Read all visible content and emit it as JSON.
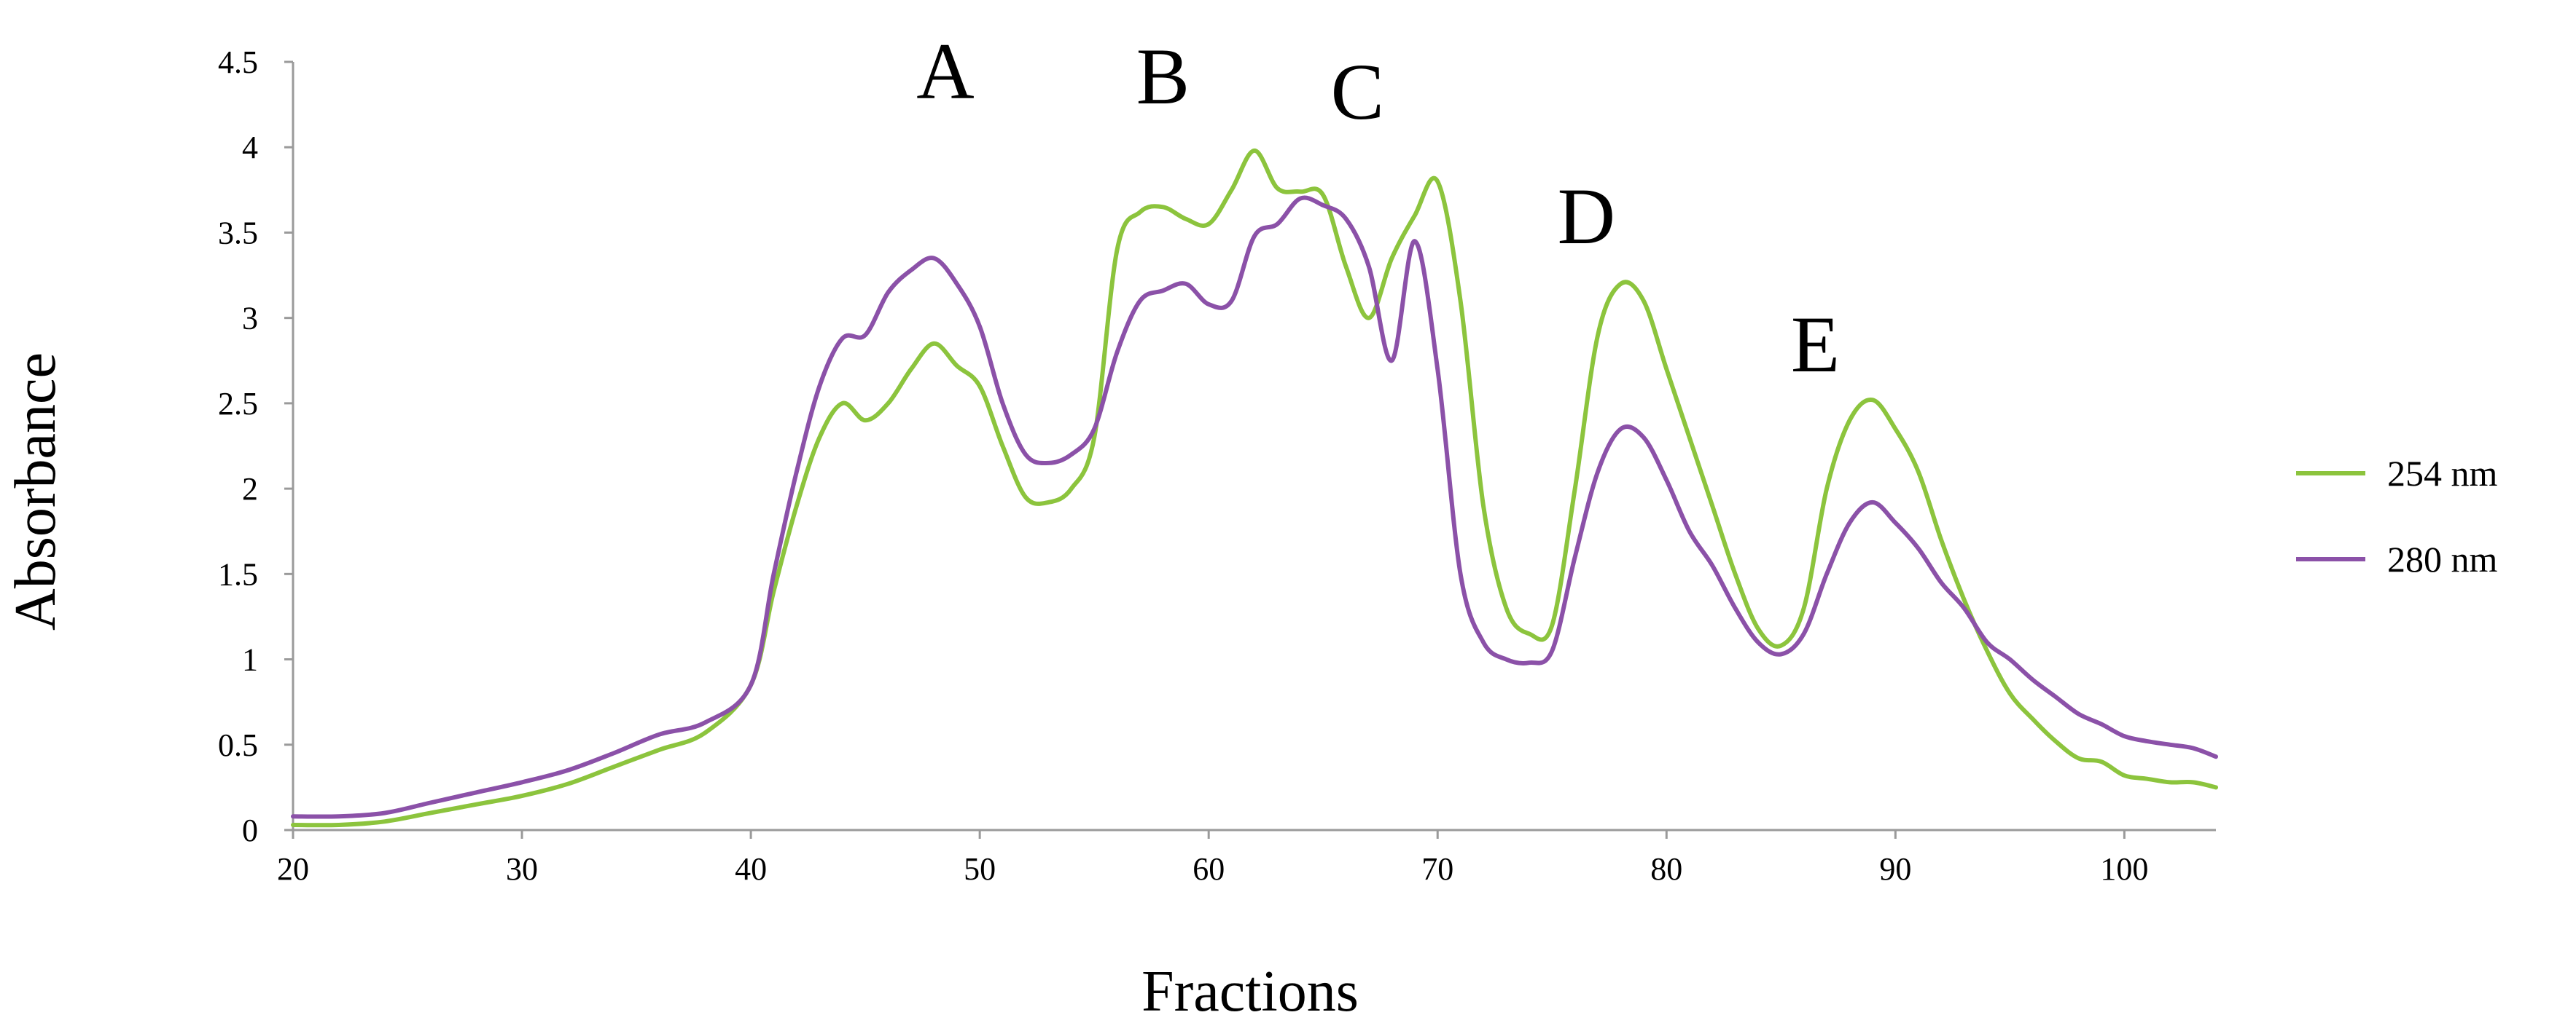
{
  "chart_data": {
    "type": "line",
    "title": "",
    "xlabel": "Fractions",
    "ylabel": "Absorbance",
    "xlim": [
      20,
      104
    ],
    "ylim": [
      0,
      4.5
    ],
    "xticks": [
      20,
      30,
      40,
      50,
      60,
      70,
      80,
      90,
      100
    ],
    "yticks": [
      0,
      0.5,
      1,
      1.5,
      2,
      2.5,
      3,
      3.5,
      4,
      4.5
    ],
    "xtick_labels": [
      "20",
      "30",
      "40",
      "50",
      "60",
      "70",
      "80",
      "90",
      "100"
    ],
    "ytick_labels": [
      "0",
      "0.5",
      "1",
      "1.5",
      "2",
      "2.5",
      "3",
      "3.5",
      "4",
      "4.5"
    ],
    "grid": false,
    "legend_position": "right",
    "series": [
      {
        "name": "254 nm",
        "color": "#8cc43d",
        "x": [
          20,
          22,
          24,
          26,
          28,
          30,
          32,
          34,
          36,
          38,
          40,
          41,
          42,
          43,
          44,
          45,
          46,
          47,
          48,
          49,
          50,
          51,
          52,
          53,
          54,
          55,
          56,
          57,
          58,
          59,
          60,
          61,
          62,
          63,
          64,
          65,
          66,
          67,
          68,
          69,
          70,
          71,
          72,
          73,
          74,
          75,
          76,
          77,
          78,
          79,
          80,
          81,
          82,
          83,
          84,
          85,
          86,
          87,
          88,
          89,
          90,
          91,
          92,
          93,
          94,
          95,
          96,
          97,
          98,
          99,
          100,
          101,
          102,
          103,
          104
        ],
        "y": [
          0.03,
          0.03,
          0.05,
          0.1,
          0.15,
          0.2,
          0.27,
          0.37,
          0.47,
          0.57,
          0.85,
          1.4,
          1.9,
          2.3,
          2.5,
          2.4,
          2.5,
          2.7,
          2.85,
          2.72,
          2.6,
          2.25,
          1.95,
          1.92,
          2.0,
          2.3,
          3.4,
          3.62,
          3.65,
          3.58,
          3.55,
          3.75,
          3.98,
          3.76,
          3.74,
          3.72,
          3.3,
          3.0,
          3.35,
          3.6,
          3.8,
          3.1,
          1.9,
          1.3,
          1.15,
          1.2,
          2.0,
          2.9,
          3.2,
          3.1,
          2.7,
          2.3,
          1.9,
          1.5,
          1.18,
          1.08,
          1.3,
          2.0,
          2.4,
          2.52,
          2.35,
          2.1,
          1.7,
          1.35,
          1.05,
          0.8,
          0.65,
          0.52,
          0.42,
          0.4,
          0.32,
          0.3,
          0.28,
          0.28,
          0.25
        ]
      },
      {
        "name": "280 nm",
        "color": "#8b51a8",
        "x": [
          20,
          22,
          24,
          26,
          28,
          30,
          32,
          34,
          36,
          38,
          40,
          41,
          42,
          43,
          44,
          45,
          46,
          47,
          48,
          49,
          50,
          51,
          52,
          53,
          54,
          55,
          56,
          57,
          58,
          59,
          60,
          61,
          62,
          63,
          64,
          65,
          66,
          67,
          68,
          69,
          70,
          71,
          72,
          73,
          74,
          75,
          76,
          77,
          78,
          79,
          80,
          81,
          82,
          83,
          84,
          85,
          86,
          87,
          88,
          89,
          90,
          91,
          92,
          93,
          94,
          95,
          96,
          97,
          98,
          99,
          100,
          101,
          102,
          103,
          104
        ],
        "y": [
          0.08,
          0.08,
          0.1,
          0.16,
          0.22,
          0.28,
          0.35,
          0.45,
          0.56,
          0.63,
          0.85,
          1.5,
          2.1,
          2.6,
          2.88,
          2.9,
          3.15,
          3.28,
          3.35,
          3.2,
          2.95,
          2.5,
          2.2,
          2.15,
          2.2,
          2.35,
          2.8,
          3.1,
          3.16,
          3.2,
          3.08,
          3.1,
          3.48,
          3.55,
          3.7,
          3.66,
          3.58,
          3.3,
          2.75,
          3.45,
          2.7,
          1.5,
          1.1,
          1.0,
          0.98,
          1.05,
          1.6,
          2.1,
          2.35,
          2.3,
          2.05,
          1.75,
          1.55,
          1.3,
          1.1,
          1.03,
          1.15,
          1.5,
          1.8,
          1.92,
          1.8,
          1.65,
          1.45,
          1.3,
          1.1,
          1.0,
          0.88,
          0.78,
          0.68,
          0.62,
          0.55,
          0.52,
          0.5,
          0.48,
          0.43
        ]
      }
    ],
    "annotations": [
      {
        "text": "A",
        "x": 48.5,
        "y": 4.45
      },
      {
        "text": "B",
        "x": 58,
        "y": 4.42
      },
      {
        "text": "C",
        "x": 66.5,
        "y": 4.33
      },
      {
        "text": "D",
        "x": 76.5,
        "y": 3.6
      },
      {
        "text": "E",
        "x": 86.5,
        "y": 2.85
      }
    ]
  }
}
